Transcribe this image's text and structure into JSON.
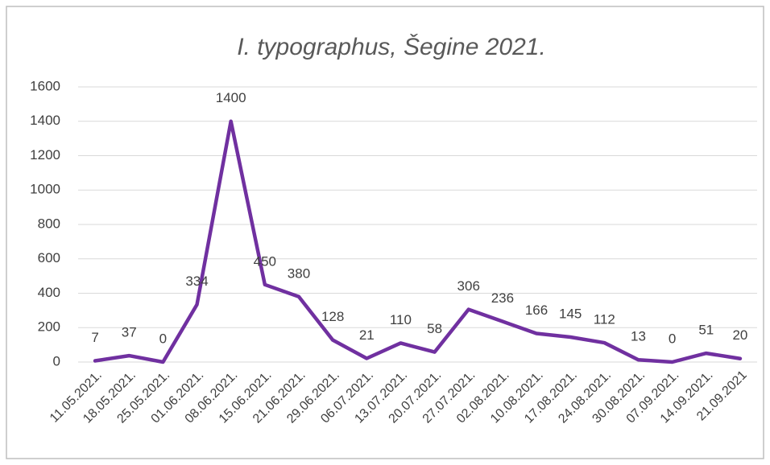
{
  "chart_data": {
    "type": "line",
    "title": "I. typographus, Šegine 2021.",
    "categories": [
      "11.05.2021.",
      "18.05.2021.",
      "25.05.2021.",
      "01.06.2021.",
      "08.06.2021.",
      "15.06.2021.",
      "21.06.2021.",
      "29.06.2021.",
      "06.07.2021.",
      "13.07.2021.",
      "20.07.2021.",
      "27.07.2021.",
      "02.08.2021.",
      "10.08.2021.",
      "17.08.2021.",
      "24.08.2021.",
      "30.08.2021.",
      "07.09.2021.",
      "14.09.2021.",
      "21.09.2021"
    ],
    "values": [
      7,
      37,
      0,
      334,
      1400,
      450,
      380,
      128,
      21,
      110,
      58,
      306,
      236,
      166,
      145,
      112,
      13,
      0,
      51,
      20
    ],
    "color": "#7030a0",
    "ylim": [
      0,
      1600
    ],
    "yticks": [
      0,
      200,
      400,
      600,
      800,
      1000,
      1200,
      1400,
      1600
    ],
    "grid": true
  }
}
